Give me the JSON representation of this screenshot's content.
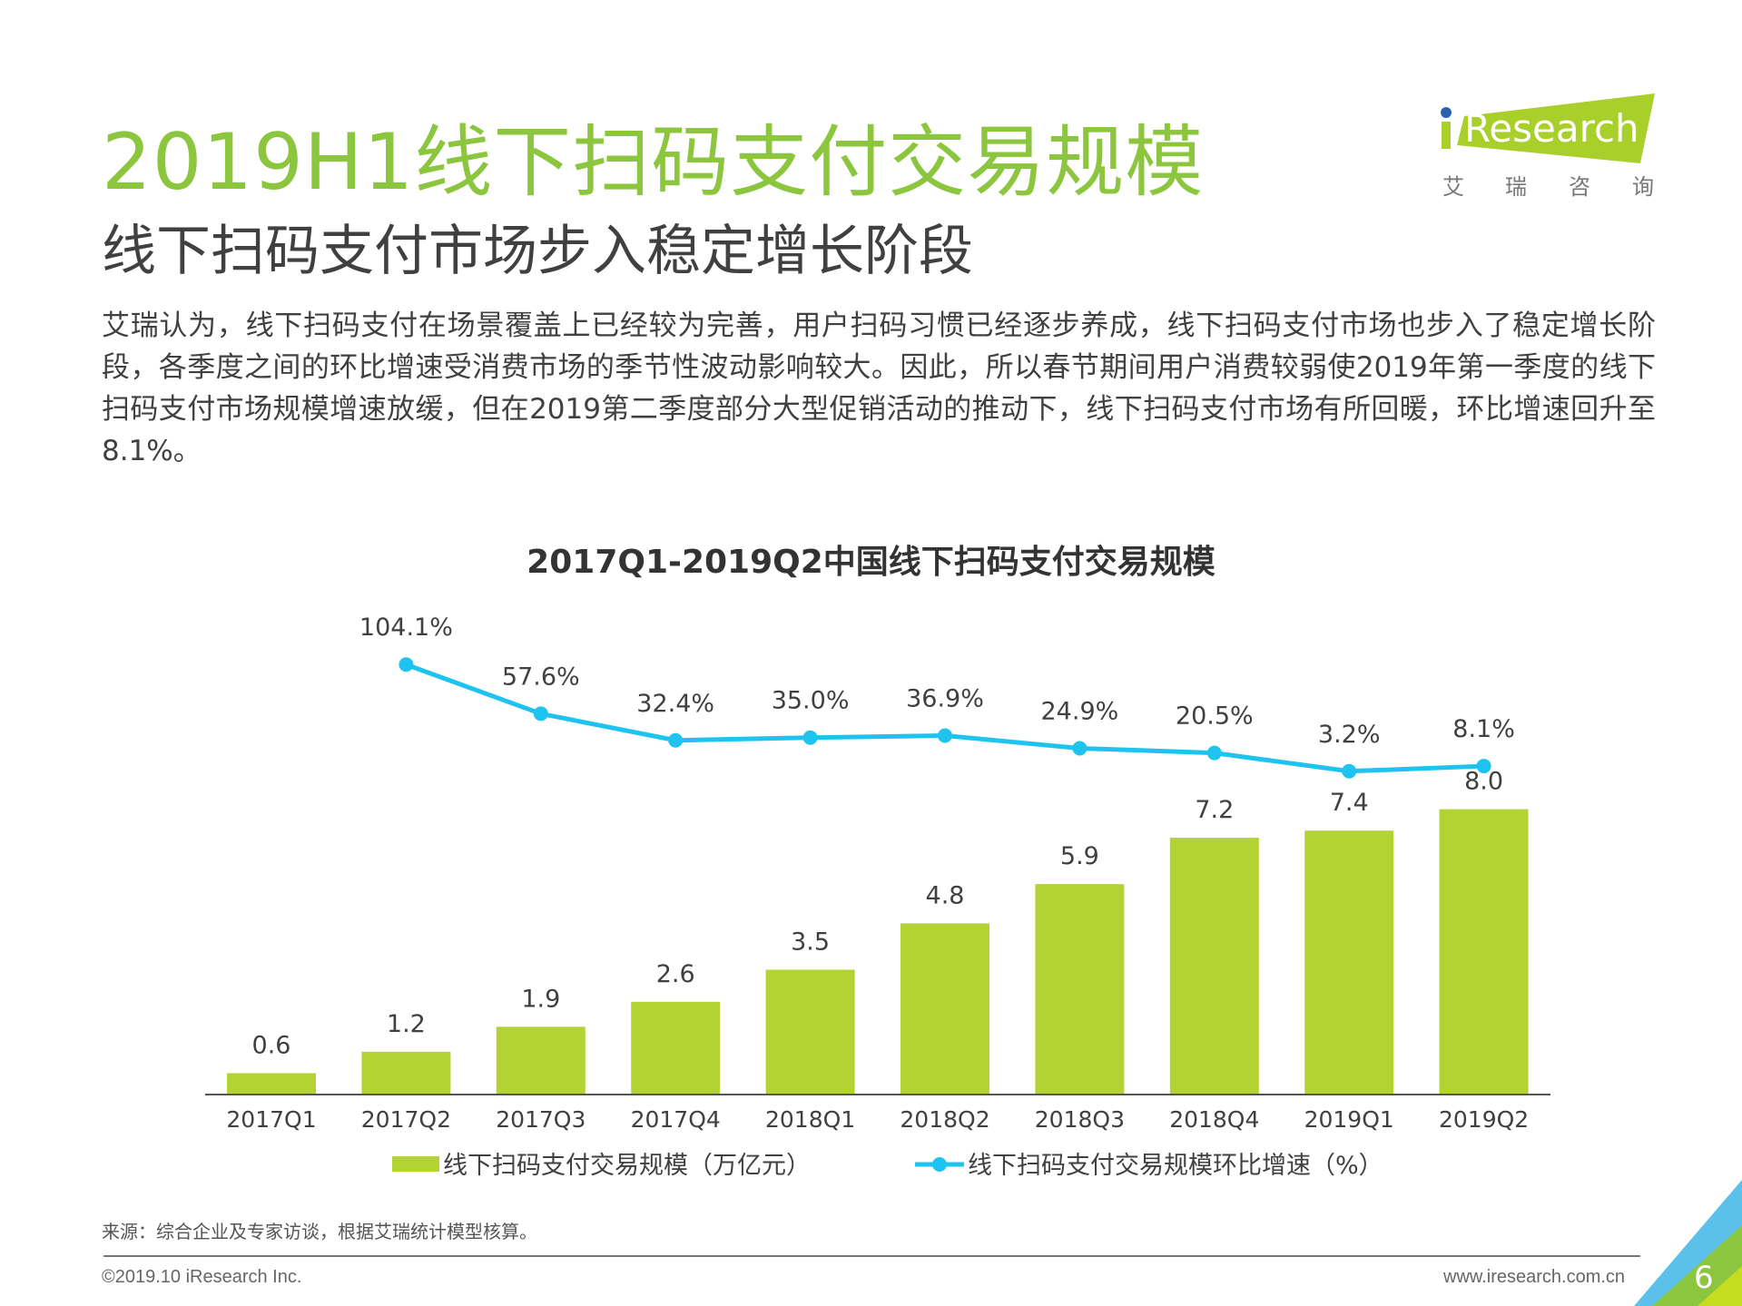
{
  "header": {
    "title": "2019H1线下扫码支付交易规模",
    "subtitle": "线下扫码支付市场步入稳定增长阶段",
    "paragraph": "艾瑞认为，线下扫码支付在场景覆盖上已经较为完善，用户扫码习惯已经逐步养成，线下扫码支付市场也步入了稳定增长阶段，各季度之间的环比增速受消费市场的季节性波动影响较大。因此，所以春节期间用户消费较弱使2019年第一季度的线下扫码支付市场规模增速放缓，但在2019第二季度部分大型促销活动的推动下，线下扫码支付市场有所回暖，环比增速回升至8.1%。"
  },
  "logo": {
    "text": "iResearch",
    "cn": [
      "艾",
      "瑞",
      "咨",
      "询"
    ]
  },
  "chart_data": {
    "type": "bar",
    "title": "2017Q1-2019Q2中国线下扫码支付交易规模",
    "categories": [
      "2017Q1",
      "2017Q2",
      "2017Q3",
      "2017Q4",
      "2018Q1",
      "2018Q2",
      "2018Q3",
      "2018Q4",
      "2019Q1",
      "2019Q2"
    ],
    "series": [
      {
        "name": "线下扫码支付交易规模（万亿元）",
        "type": "bar",
        "color": "#b3d334",
        "values": [
          0.6,
          1.2,
          1.9,
          2.6,
          3.5,
          4.8,
          5.9,
          7.2,
          7.4,
          8.0
        ],
        "labels": [
          "0.6",
          "1.2",
          "1.9",
          "2.6",
          "3.5",
          "4.8",
          "5.9",
          "7.2",
          "7.4",
          "8.0"
        ]
      },
      {
        "name": "线下扫码支付交易规模环比增速（%）",
        "type": "line",
        "color": "#1fc3ef",
        "values": [
          null,
          104.1,
          57.6,
          32.4,
          35.0,
          36.9,
          24.9,
          20.5,
          3.2,
          8.1
        ],
        "labels": [
          "",
          "104.1%",
          "57.6%",
          "32.4%",
          "35.0%",
          "36.9%",
          "24.9%",
          "20.5%",
          "3.2%",
          "8.1%"
        ]
      }
    ],
    "legend": "bottom",
    "grid": false
  },
  "footer": {
    "source": "来源：综合企业及专家访谈，根据艾瑞统计模型核算。",
    "copyright": "©2019.10 iResearch Inc.",
    "website": "www.iresearch.com.cn",
    "page": "6"
  }
}
